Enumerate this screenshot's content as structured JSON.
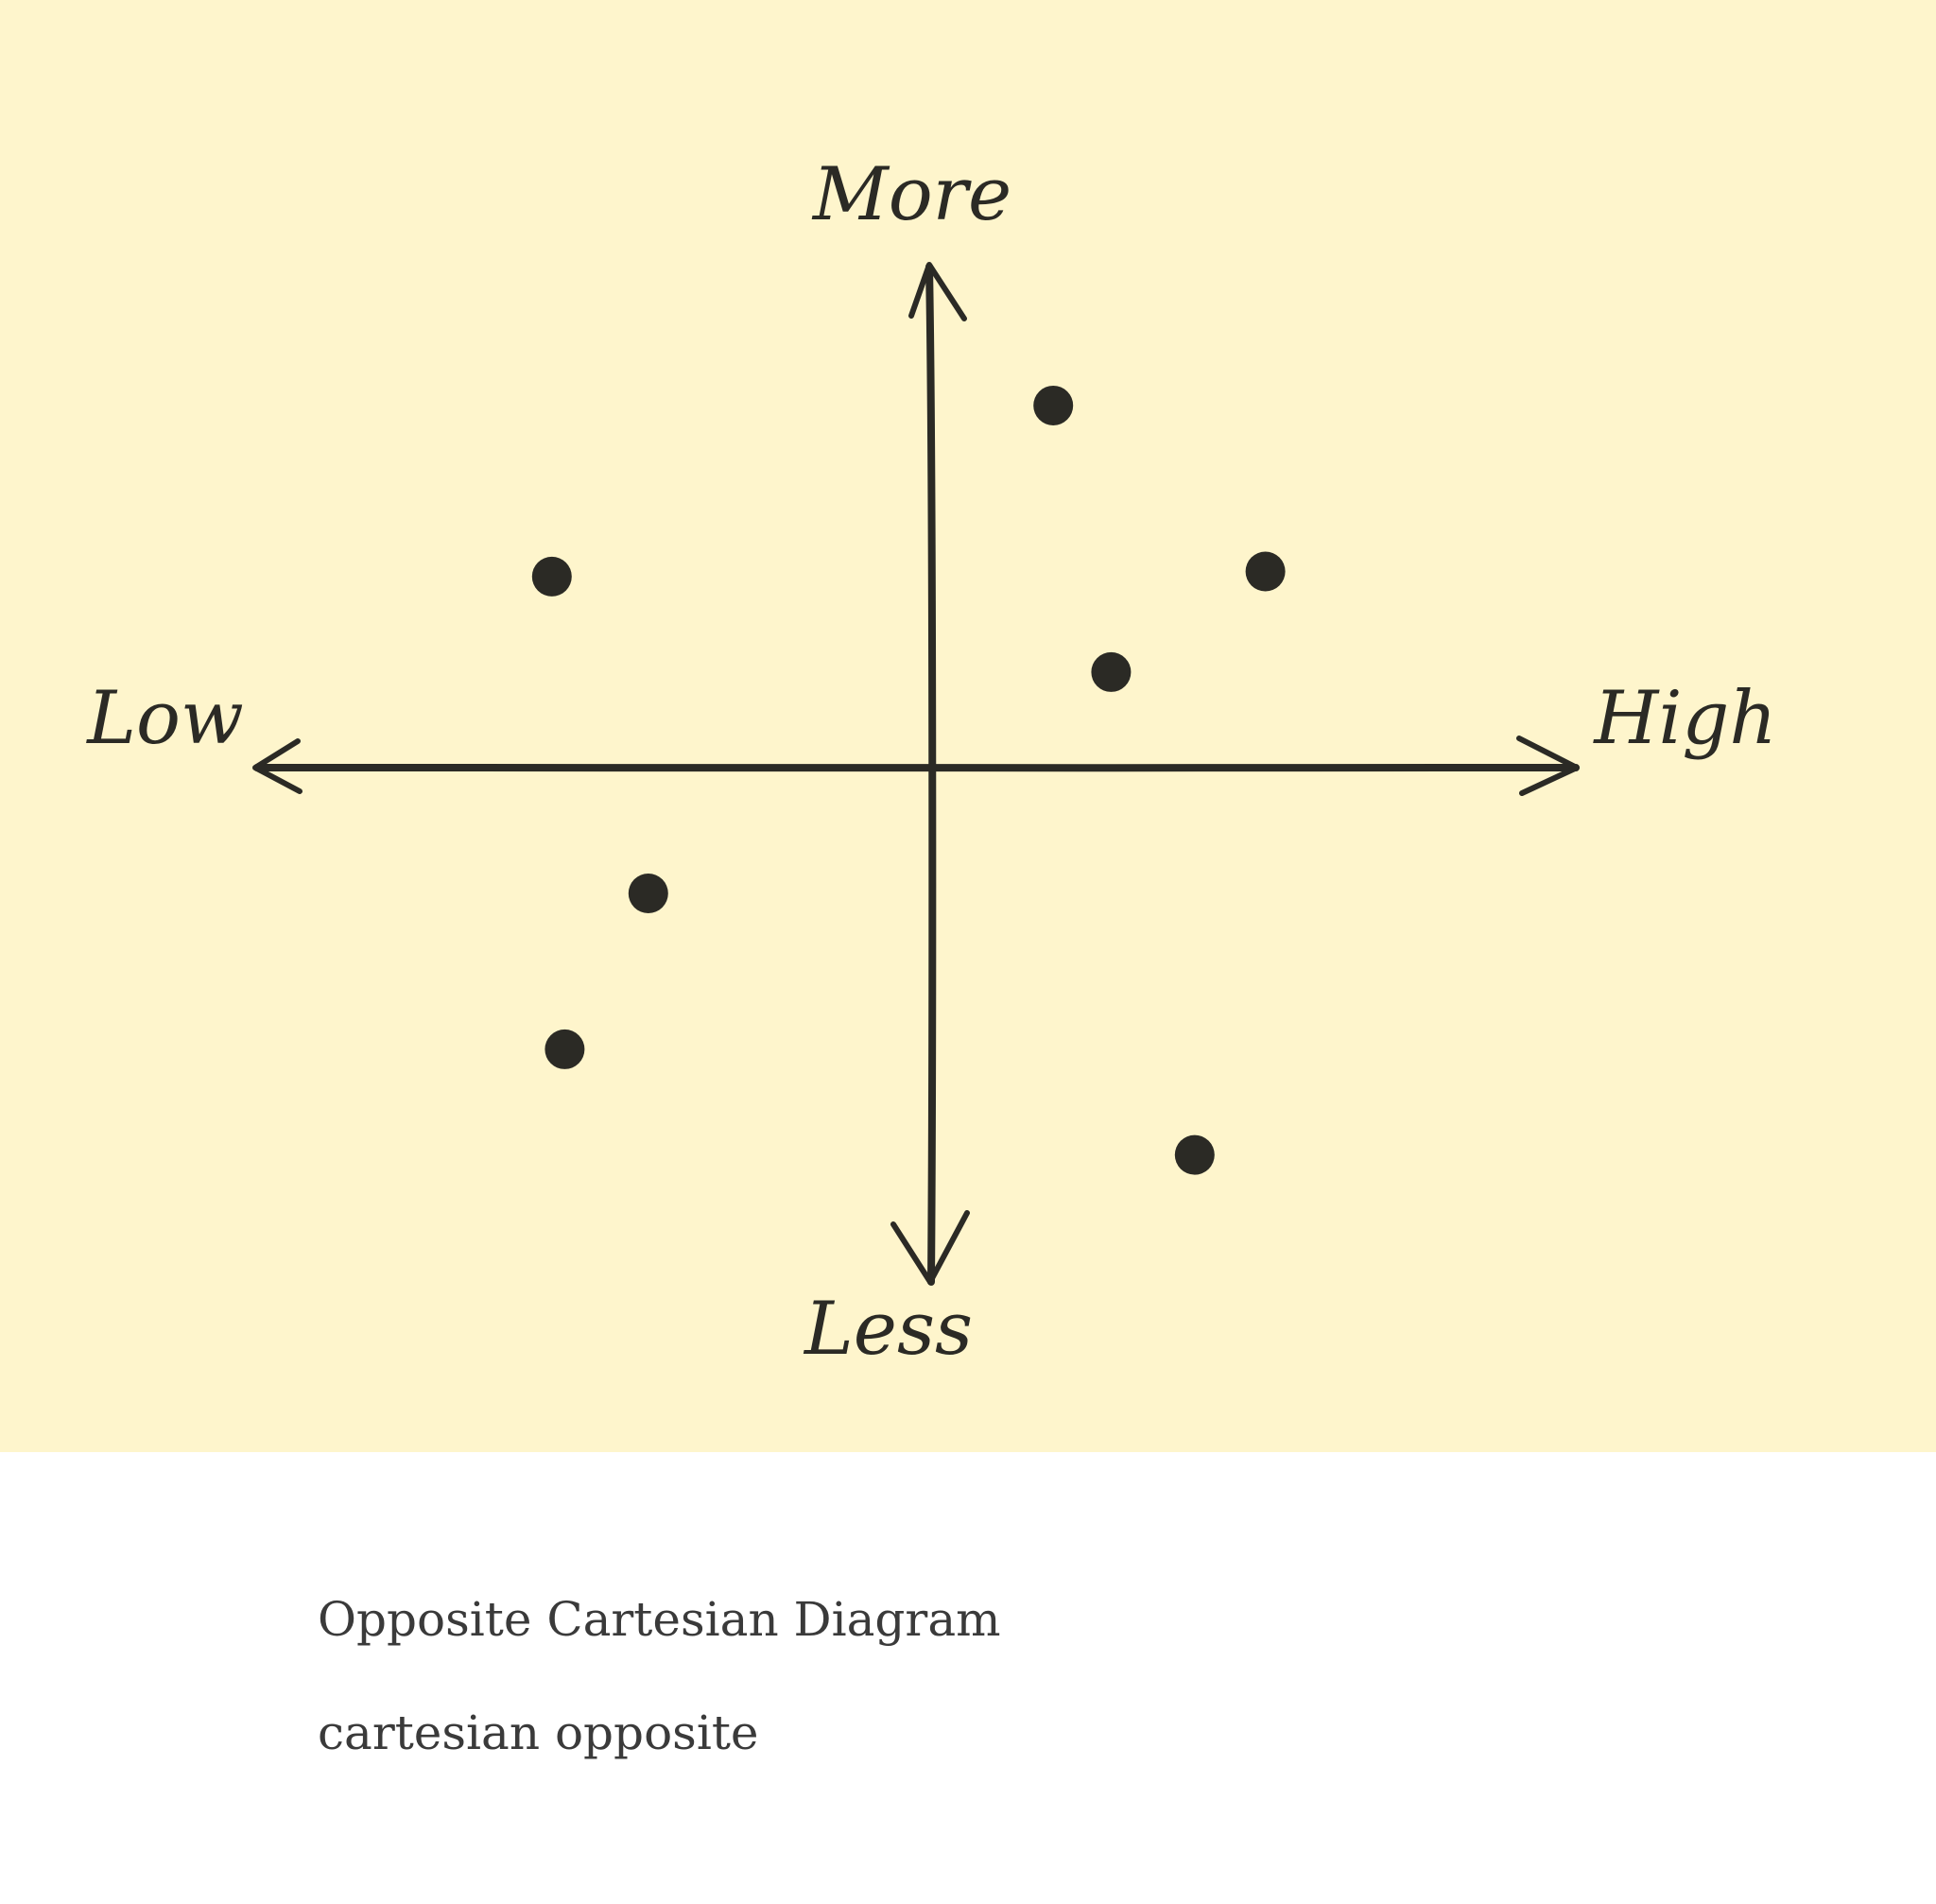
{
  "diagram": {
    "type": "scatter",
    "axis_labels": {
      "top": "More",
      "bottom": "Less",
      "left": "Low",
      "right": "High"
    },
    "points": [
      {
        "x": 0.19,
        "y": 0.72
      },
      {
        "x": -0.59,
        "y": 0.38
      },
      {
        "x": 0.52,
        "y": 0.39
      },
      {
        "x": 0.28,
        "y": 0.19
      },
      {
        "x": -0.44,
        "y": -0.25
      },
      {
        "x": -0.57,
        "y": -0.56
      },
      {
        "x": 0.41,
        "y": -0.77
      }
    ],
    "colors": {
      "background": "#fef5cc",
      "ink": "#2b2a25"
    }
  },
  "caption": {
    "title": "Opposite Cartesian Diagram",
    "subtitle": "cartesian opposite"
  }
}
